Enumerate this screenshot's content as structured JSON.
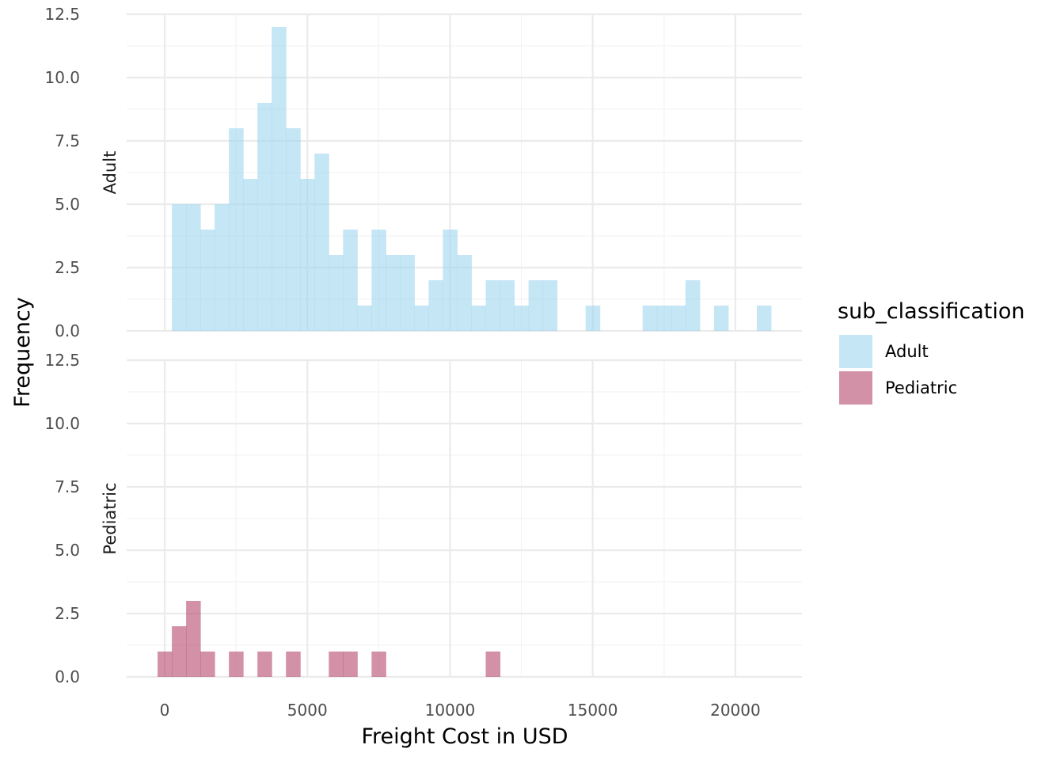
{
  "chart_data": {
    "type": "histogram",
    "xlabel": "Freight Cost in USD",
    "ylabel": "Frequency",
    "xlim": [
      -1333,
      22333
    ],
    "ylim": [
      0,
      12.5
    ],
    "x_ticks": [
      0,
      5000,
      10000,
      15000,
      20000
    ],
    "x_tick_labels": [
      "0",
      "5000",
      "10000",
      "15000",
      "20000"
    ],
    "y_ticks": [
      0,
      2.5,
      5,
      7.5,
      10,
      12.5
    ],
    "y_tick_labels": [
      "0.0",
      "2.5",
      "5.0",
      "7.5",
      "10.0",
      "12.5"
    ],
    "bin_width": 500,
    "legend": {
      "title": "sub_classification",
      "position": "right",
      "entries": [
        {
          "label": "Adult",
          "color": "#9fd6ee",
          "opacity": 0.6
        },
        {
          "label": "Pediatric",
          "color": "#b5476e",
          "opacity": 0.6
        }
      ]
    },
    "panels": [
      {
        "strip_label": "Adult",
        "color": "#9fd6ee",
        "bins": [
          {
            "x": 500,
            "count": 5
          },
          {
            "x": 1000,
            "count": 5
          },
          {
            "x": 1500,
            "count": 4
          },
          {
            "x": 2000,
            "count": 5
          },
          {
            "x": 2500,
            "count": 8
          },
          {
            "x": 3000,
            "count": 6
          },
          {
            "x": 3500,
            "count": 9
          },
          {
            "x": 4000,
            "count": 12
          },
          {
            "x": 4500,
            "count": 8
          },
          {
            "x": 5000,
            "count": 6
          },
          {
            "x": 5500,
            "count": 7
          },
          {
            "x": 6000,
            "count": 3
          },
          {
            "x": 6500,
            "count": 4
          },
          {
            "x": 7000,
            "count": 1
          },
          {
            "x": 7500,
            "count": 4
          },
          {
            "x": 8000,
            "count": 3
          },
          {
            "x": 8500,
            "count": 3
          },
          {
            "x": 9000,
            "count": 1
          },
          {
            "x": 9500,
            "count": 2
          },
          {
            "x": 10000,
            "count": 4
          },
          {
            "x": 10500,
            "count": 3
          },
          {
            "x": 11000,
            "count": 1
          },
          {
            "x": 11500,
            "count": 2
          },
          {
            "x": 12000,
            "count": 2
          },
          {
            "x": 12500,
            "count": 1
          },
          {
            "x": 13000,
            "count": 2
          },
          {
            "x": 13500,
            "count": 2
          },
          {
            "x": 15000,
            "count": 1
          },
          {
            "x": 17000,
            "count": 1
          },
          {
            "x": 17500,
            "count": 1
          },
          {
            "x": 18000,
            "count": 1
          },
          {
            "x": 18500,
            "count": 2
          },
          {
            "x": 19500,
            "count": 1
          },
          {
            "x": 21000,
            "count": 1
          }
        ]
      },
      {
        "strip_label": "Pediatric",
        "color": "#b5476e",
        "bins": [
          {
            "x": 0,
            "count": 1
          },
          {
            "x": 500,
            "count": 2
          },
          {
            "x": 1000,
            "count": 3
          },
          {
            "x": 1500,
            "count": 1
          },
          {
            "x": 2500,
            "count": 1
          },
          {
            "x": 3500,
            "count": 1
          },
          {
            "x": 4500,
            "count": 1
          },
          {
            "x": 6000,
            "count": 1
          },
          {
            "x": 6500,
            "count": 1
          },
          {
            "x": 7500,
            "count": 1
          },
          {
            "x": 11500,
            "count": 1
          }
        ]
      }
    ]
  }
}
